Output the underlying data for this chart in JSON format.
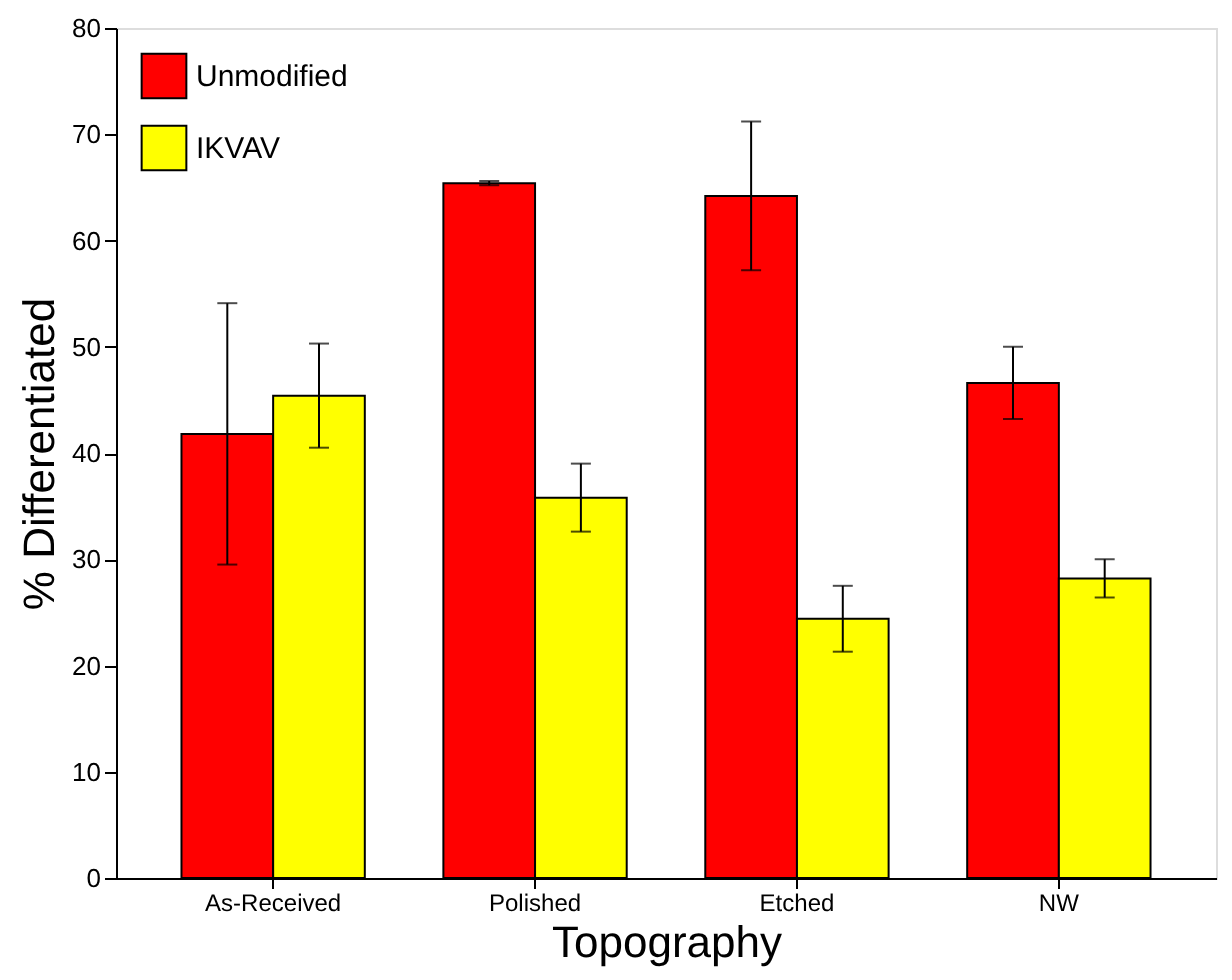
{
  "chart_data": {
    "type": "bar",
    "xlabel": "Topography",
    "ylabel": "% Differentiated",
    "categories": [
      "As-Received",
      "Polished",
      "Etched",
      "NW"
    ],
    "series": [
      {
        "name": "Unmodified",
        "color": "#ff0000",
        "values": [
          41.8,
          65.4,
          64.2,
          46.6
        ],
        "errors": [
          12.3,
          0.2,
          7,
          3.4
        ]
      },
      {
        "name": "IKVAV",
        "color": "#ffff00",
        "values": [
          45.4,
          35.8,
          24.4,
          28.2
        ],
        "errors": [
          4.9,
          3.2,
          3.1,
          1.8
        ]
      }
    ],
    "ylim": [
      0,
      80
    ],
    "yticks": [
      0,
      10,
      20,
      30,
      40,
      50,
      60,
      70,
      80
    ],
    "grid": false,
    "legend": "top left"
  }
}
